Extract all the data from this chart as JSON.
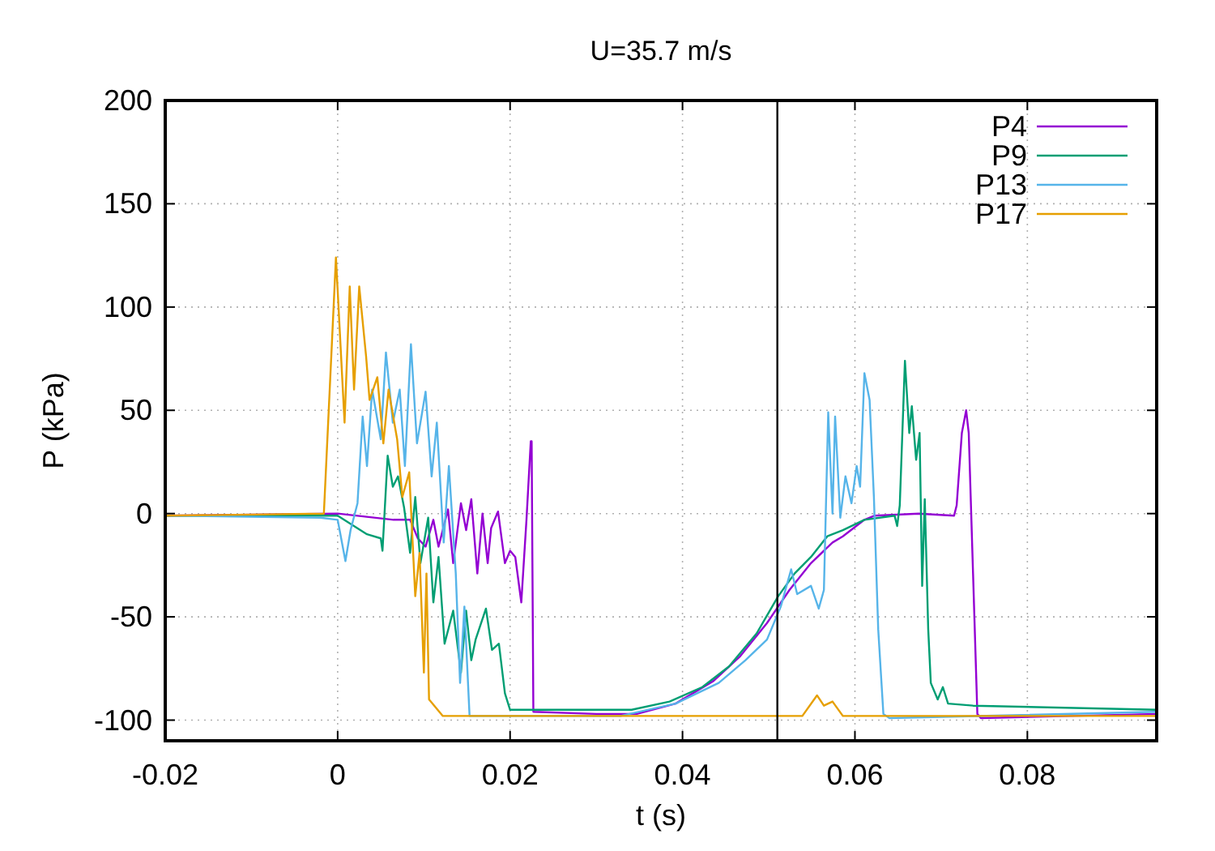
{
  "chart_data": {
    "type": "line",
    "title": "U=35.7 m/s",
    "xlabel": "t (s)",
    "ylabel": "P (kPa)",
    "xlim": [
      -0.02,
      0.095
    ],
    "ylim": [
      -110,
      200
    ],
    "xticks": [
      -0.02,
      0,
      0.02,
      0.04,
      0.06,
      0.08
    ],
    "yticks": [
      -100,
      -50,
      0,
      50,
      100,
      150,
      200
    ],
    "grid": true,
    "legend": "top right",
    "marker": "none",
    "line_style": "solid",
    "ref_lines": [
      {
        "axis": "x",
        "value": 0.051,
        "color": "#000000"
      }
    ],
    "series": [
      {
        "name": "P4",
        "color": "#9400d3",
        "x": [
          -0.02,
          0.0,
          0.0065,
          0.0084,
          0.0093,
          0.0102,
          0.0111,
          0.0117,
          0.0128,
          0.0134,
          0.0143,
          0.0149,
          0.0155,
          0.0162,
          0.0168,
          0.0174,
          0.0178,
          0.0186,
          0.0194,
          0.02,
          0.0206,
          0.0213,
          0.0219,
          0.0224,
          0.0225,
          0.0227,
          0.03,
          0.0347,
          0.0392,
          0.0436,
          0.0467,
          0.0498,
          0.0524,
          0.0549,
          0.0574,
          0.0586,
          0.0611,
          0.0623,
          0.0674,
          0.0715,
          0.0718,
          0.0724,
          0.0729,
          0.0732,
          0.0737,
          0.0742,
          0.0746,
          0.095
        ],
        "values": [
          -1,
          0,
          -3,
          -3,
          -12,
          -16,
          -3,
          -16,
          2,
          -24,
          5,
          -8,
          7,
          -29,
          0,
          -24,
          -7,
          1,
          -24,
          -18,
          -21,
          -43,
          -3,
          35,
          35,
          -96,
          -97,
          -97,
          -92,
          -81,
          -69,
          -53,
          -37,
          -24,
          -14,
          -11,
          -3,
          -1,
          0,
          -1,
          4,
          39,
          50,
          39,
          -29,
          -97,
          -99,
          -97
        ]
      },
      {
        "name": "P9",
        "color": "#009e73",
        "x": [
          -0.02,
          0.0,
          0.0034,
          0.005,
          0.0052,
          0.0058,
          0.0064,
          0.007,
          0.0077,
          0.0084,
          0.009,
          0.0096,
          0.0105,
          0.0111,
          0.0117,
          0.0124,
          0.0134,
          0.0143,
          0.0149,
          0.0155,
          0.016,
          0.0172,
          0.0179,
          0.0187,
          0.0194,
          0.02,
          0.03,
          0.0341,
          0.0385,
          0.0423,
          0.0454,
          0.0486,
          0.0511,
          0.053,
          0.0549,
          0.0568,
          0.0586,
          0.0611,
          0.0646,
          0.0649,
          0.0652,
          0.0658,
          0.0663,
          0.0666,
          0.0671,
          0.0675,
          0.0678,
          0.0681,
          0.0685,
          0.0688,
          0.0696,
          0.0702,
          0.0708,
          0.0737,
          0.095
        ],
        "values": [
          -1,
          -1,
          -10,
          -12,
          -18,
          28,
          13,
          18,
          3,
          -19,
          8,
          -24,
          -2,
          -43,
          -21,
          -63,
          -47,
          -77,
          -47,
          -71,
          -61,
          -46,
          -66,
          -63,
          -87,
          -95,
          -95,
          -95,
          -91,
          -84,
          -74,
          -58,
          -40,
          -29,
          -21,
          -11,
          -8,
          -3,
          -1,
          -6,
          4,
          74,
          39,
          52,
          26,
          39,
          -35,
          7,
          -56,
          -82,
          -90,
          -84,
          -92,
          -93,
          -95
        ]
      },
      {
        "name": "P13",
        "color": "#56b4e9",
        "x": [
          -0.02,
          -0.002,
          0.0,
          0.0009,
          0.0015,
          0.0023,
          0.0029,
          0.0034,
          0.004,
          0.005,
          0.0056,
          0.0064,
          0.0072,
          0.0078,
          0.0085,
          0.0092,
          0.0102,
          0.0109,
          0.0115,
          0.0123,
          0.0129,
          0.0137,
          0.0142,
          0.0147,
          0.0153,
          0.0159,
          0.0328,
          0.0392,
          0.0442,
          0.0473,
          0.0498,
          0.0514,
          0.0526,
          0.0533,
          0.0549,
          0.0558,
          0.0564,
          0.0569,
          0.0574,
          0.0577,
          0.0583,
          0.0589,
          0.0596,
          0.0602,
          0.0606,
          0.0611,
          0.0617,
          0.0622,
          0.0627,
          0.0633,
          0.064,
          0.095
        ],
        "values": [
          -1,
          -2,
          -3,
          -23,
          -8,
          5,
          47,
          23,
          60,
          36,
          78,
          44,
          60,
          23,
          82,
          34,
          59,
          18,
          44,
          -14,
          23,
          -29,
          -82,
          -45,
          -98,
          -98,
          -98,
          -92,
          -82,
          -71,
          -61,
          -45,
          -27,
          -39,
          -35,
          -46,
          -37,
          49,
          0,
          47,
          -2,
          18,
          5,
          23,
          13,
          68,
          55,
          8,
          -56,
          -97,
          -99,
          -96
        ]
      },
      {
        "name": "P17",
        "color": "#e69f00",
        "x": [
          -0.02,
          -0.0016,
          -0.0002,
          0.0008,
          0.0014,
          0.0019,
          0.0025,
          0.0033,
          0.0037,
          0.0046,
          0.0053,
          0.0059,
          0.0069,
          0.0075,
          0.0083,
          0.009,
          0.0095,
          0.01,
          0.0103,
          0.0106,
          0.0122,
          0.0539,
          0.0556,
          0.0564,
          0.0574,
          0.0586,
          0.095
        ],
        "values": [
          -1,
          0,
          124,
          44,
          110,
          60,
          110,
          76,
          55,
          66,
          34,
          60,
          36,
          8,
          20,
          -40,
          -19,
          -77,
          -29,
          -90,
          -98,
          -98,
          -88,
          -93,
          -91,
          -98,
          -98
        ]
      }
    ]
  }
}
